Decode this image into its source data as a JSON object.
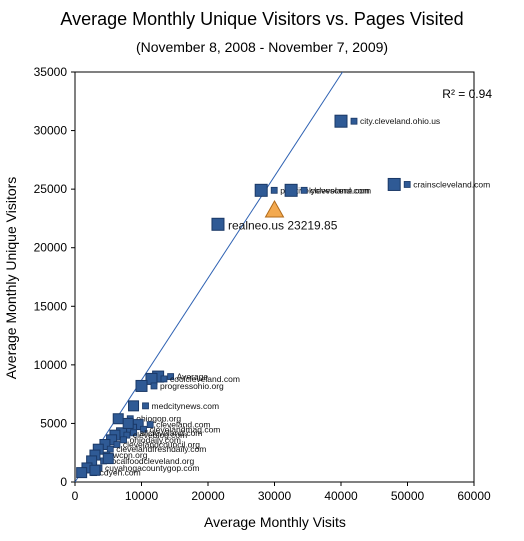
{
  "chart_data": {
    "type": "scatter",
    "title": "Average Monthly Unique Visitors vs. Pages Visited",
    "subtitle": "(November 8, 2008 - November 7, 2009)",
    "xlabel": "Average Monthly Visits",
    "ylabel": "Average Monthly Unique Visitors",
    "xlim": [
      0,
      60000
    ],
    "ylim": [
      0,
      35000
    ],
    "xticks": [
      "0",
      "10000",
      "20000",
      "30000",
      "40000",
      "50000",
      "60000"
    ],
    "yticks": [
      "0",
      "5000",
      "10000",
      "15000",
      "20000",
      "25000",
      "30000",
      "35000"
    ],
    "r_squared": "R² = 0.94",
    "trendline": {
      "slope": 0.87,
      "intercept": 0
    },
    "grid": false,
    "colors": {
      "point": "#2f5a95",
      "point_border": "#1a3866",
      "highlight": "#f3a94f",
      "highlight_border": "#b06a1a",
      "trend": "#2f62b3"
    },
    "highlight": {
      "label": "realneo.us 23219.85",
      "x": 30000,
      "y": 23220
    },
    "points": [
      {
        "x": 40000,
        "y": 30800,
        "label": "city.cleveland.ohio.us"
      },
      {
        "x": 48000,
        "y": 25400,
        "label": "crainscleveland.com"
      },
      {
        "x": 28000,
        "y": 24900,
        "label": "positivelycleveland.com"
      },
      {
        "x": 32500,
        "y": 24900,
        "label": "clevescene.com"
      },
      {
        "x": 21500,
        "y": 22000,
        "label": ""
      },
      {
        "x": 12500,
        "y": 9000,
        "label": "Average"
      },
      {
        "x": 11500,
        "y": 8800,
        "label": "coolcleveland.com"
      },
      {
        "x": 10000,
        "y": 8200,
        "label": "progressohio.org"
      },
      {
        "x": 8800,
        "y": 6500,
        "label": "medcitynews.com"
      },
      {
        "x": 6500,
        "y": 5400,
        "label": "ohiogop.org"
      },
      {
        "x": 9500,
        "y": 4900,
        "label": "cleveland.com"
      },
      {
        "x": 8500,
        "y": 4500,
        "label": "clevelandmag.com"
      },
      {
        "x": 7000,
        "y": 4200,
        "label": "allcleveland.com"
      },
      {
        "x": 6000,
        "y": 4000,
        "label": "cleveblog.com"
      },
      {
        "x": 5500,
        "y": 3600,
        "label": "ohiodaily.com"
      },
      {
        "x": 4500,
        "y": 3200,
        "label": "clevelandcouncil.org"
      },
      {
        "x": 3500,
        "y": 2800,
        "label": "clevelandfreshdaily.com"
      },
      {
        "x": 3000,
        "y": 2300,
        "label": "wcpn.org"
      },
      {
        "x": 2500,
        "y": 1800,
        "label": "localfoodcleveland.org"
      },
      {
        "x": 1800,
        "y": 1200,
        "label": "cuyahogacountygop.com"
      },
      {
        "x": 1000,
        "y": 800,
        "label": "cdyeh.com"
      },
      {
        "x": 5000,
        "y": 2000,
        "label": ""
      },
      {
        "x": 3000,
        "y": 1000,
        "label": ""
      },
      {
        "x": 8000,
        "y": 5000,
        "label": ""
      }
    ]
  }
}
